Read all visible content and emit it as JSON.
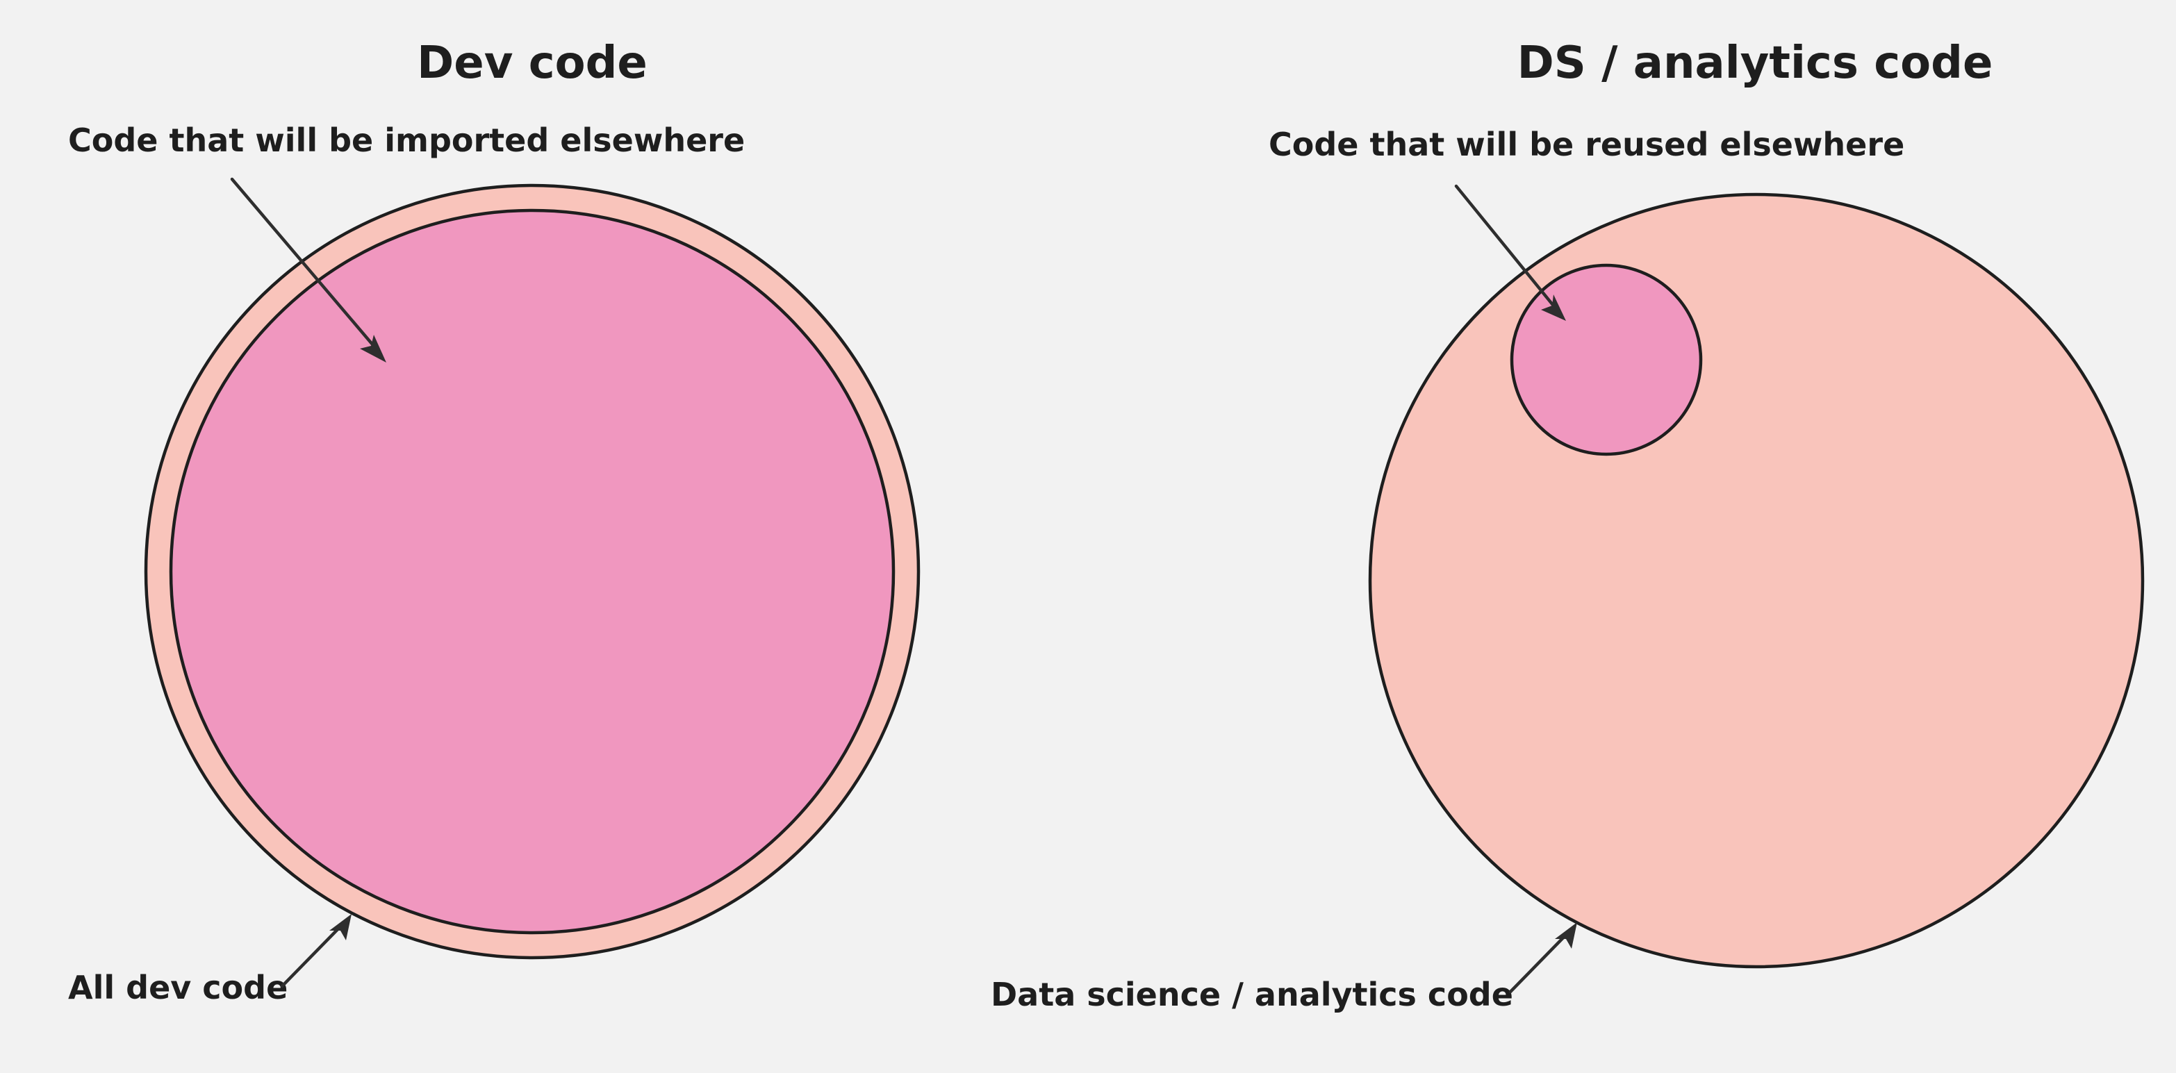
{
  "colors": {
    "background": "#f2f2f2",
    "outer_set": "#f9c4bb",
    "inner_set": "#f097bf",
    "stroke": "#1e1e1e",
    "arrow": "#2e2e2e"
  },
  "left_panel": {
    "title": "Dev code",
    "inner_label": "Code that will be imported elsewhere",
    "outer_label": "All dev code"
  },
  "right_panel": {
    "title": "DS / analytics code",
    "inner_label": "Code that will be reused elsewhere",
    "outer_label": "Data science / analytics code"
  }
}
